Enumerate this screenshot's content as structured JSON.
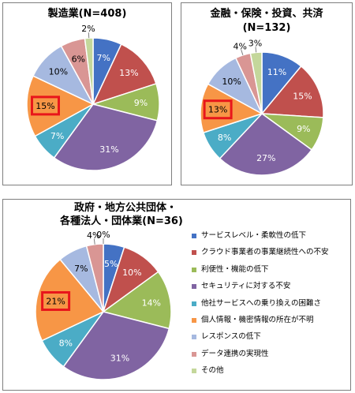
{
  "colors": [
    "#4472C4",
    "#C0504D",
    "#9BBB59",
    "#8064A2",
    "#4BACC6",
    "#F79646",
    "#A6B9E0",
    "#D99694",
    "#C4D79B"
  ],
  "highlight_color": "#E8161B",
  "legend": [
    "サービスレベル・柔軟性の低下",
    "クラウド事業者の事業継続性への不安",
    "利便性・機能の低下",
    "セキュリティに対する不安",
    "他社サービスへの乗り換えの困難さ",
    "個人情報・機密情報の所在が不明",
    "レスポンスの低下",
    "データ連携の実現性",
    "その他"
  ],
  "chart_data": [
    {
      "type": "pie",
      "title_lines": [
        "製造業(N=408)"
      ],
      "categories": [
        "サービスレベル・柔軟性の低下",
        "クラウド事業者の事業継続性への不安",
        "利便性・機能の低下",
        "セキュリティに対する不安",
        "他社サービスへの乗り換えの困難さ",
        "個人情報・機密情報の所在が不明",
        "レスポンスの低下",
        "データ連携の実現性",
        "その他"
      ],
      "values": [
        7,
        13,
        9,
        31,
        7,
        15,
        10,
        6,
        2
      ],
      "labels": [
        "7%",
        "13%",
        "9%",
        "31%",
        "7%",
        "15%",
        "10%",
        "6%",
        "2%"
      ],
      "highlighted_category": "個人情報・機密情報の所在が不明"
    },
    {
      "type": "pie",
      "title_lines": [
        "金融・保険・投資、共済",
        "(N=132)"
      ],
      "categories": [
        "サービスレベル・柔軟性の低下",
        "クラウド事業者の事業継続性への不安",
        "利便性・機能の低下",
        "セキュリティに対する不安",
        "他社サービスへの乗り換えの困難さ",
        "個人情報・機密情報の所在が不明",
        "レスポンスの低下",
        "データ連携の実現性",
        "その他"
      ],
      "values": [
        11,
        15,
        9,
        27,
        8,
        13,
        10,
        4,
        3
      ],
      "labels": [
        "11%",
        "15%",
        "9%",
        "27%",
        "8%",
        "13%",
        "10%",
        "4%",
        "3%"
      ],
      "highlighted_category": "個人情報・機密情報の所在が不明"
    },
    {
      "type": "pie",
      "title_lines": [
        "政府・地方公共団体・",
        "各種法人・団体業(N=36)"
      ],
      "categories": [
        "サービスレベル・柔軟性の低下",
        "クラウド事業者の事業継続性への不安",
        "利便性・機能の低下",
        "セキュリティに対する不安",
        "他社サービスへの乗り換えの困難さ",
        "個人情報・機密情報の所在が不明",
        "レスポンスの低下",
        "データ連携の実現性",
        "その他"
      ],
      "values": [
        5,
        10,
        14,
        31,
        8,
        21,
        7,
        4,
        0
      ],
      "labels": [
        "5%",
        "10%",
        "14%",
        "31%",
        "8%",
        "21%",
        "7%",
        "4%",
        "0%"
      ],
      "highlighted_category": "個人情報・機密情報の所在が不明",
      "legend": "right"
    }
  ]
}
